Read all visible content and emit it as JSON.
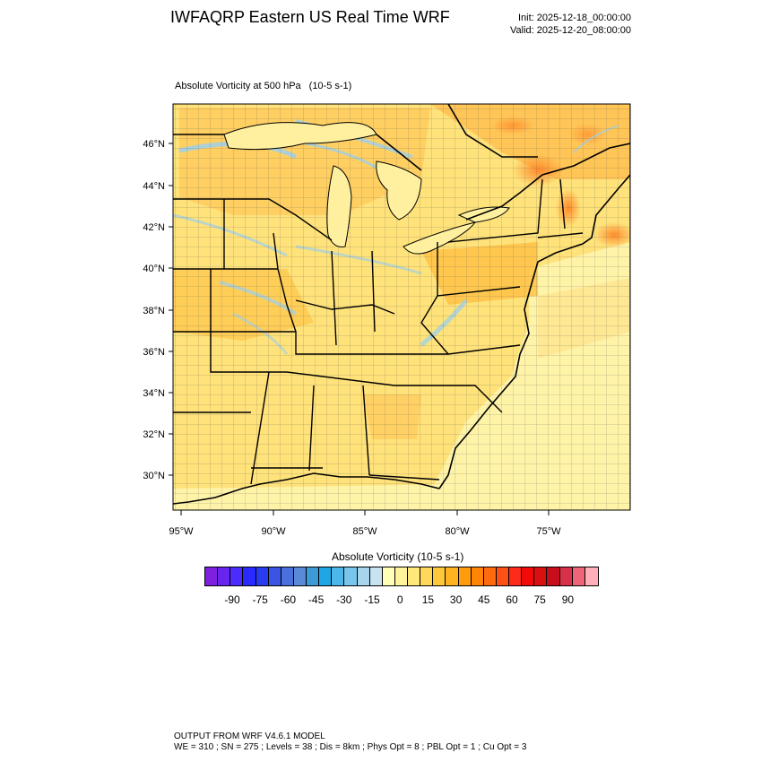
{
  "header": {
    "title": "IWFAQRP Eastern US Real Time WRF",
    "init": "Init: 2025-12-18_00:00:00",
    "valid": "Valid: 2025-12-20_08:00:00"
  },
  "plot": {
    "field_label": "Absolute Vorticity at 500 hPa",
    "field_units": "(10-5 s-1)",
    "lat_ticks": [
      "30°N",
      "32°N",
      "34°N",
      "36°N",
      "38°N",
      "40°N",
      "42°N",
      "44°N",
      "46°N"
    ],
    "lon_ticks": [
      "95°W",
      "90°W",
      "85°W",
      "80°W",
      "75°W"
    ]
  },
  "legend": {
    "title": "Absolute Vorticity  (10-5 s-1)",
    "labels": [
      "-90",
      "-75",
      "-60",
      "-45",
      "-30",
      "-15",
      "0",
      "15",
      "30",
      "45",
      "60",
      "75",
      "90"
    ],
    "colors": [
      "#7f1fe0",
      "#6a24ef",
      "#4a2cff",
      "#2a2aff",
      "#2a3cf0",
      "#3a55e6",
      "#4a70dc",
      "#5a8ad6",
      "#3c9ad8",
      "#1ea6e6",
      "#4ab6ea",
      "#78c6ee",
      "#a8d4ee",
      "#c8e2f2",
      "#ffffb8",
      "#fff49c",
      "#ffe77a",
      "#ffd85a",
      "#ffc83a",
      "#ffb31e",
      "#ff9c0e",
      "#ff8408",
      "#ff6a10",
      "#ff5018",
      "#ff2a1a",
      "#f20a0a",
      "#d81010",
      "#c80c1c",
      "#d83048",
      "#ee6478",
      "#ffb0b8"
    ],
    "colors_count_note": ""
  },
  "footer": {
    "line1": "OUTPUT FROM WRF V4.6.1 MODEL",
    "line2": "WE = 310 ; SN = 275 ; Levels = 38 ; Dis = 8km ; Phys Opt = 8 ; PBL Opt = 1 ; Cu Opt = 3"
  },
  "map_colors": {
    "base": "#ffe683",
    "land_light": "#fff3a0",
    "ocean": "#fff5b0",
    "orange": "#ffc860",
    "deep_orange": "#ff9a3a",
    "blue_streak": "#9ed0ea",
    "lake": "#a8d6ee"
  }
}
